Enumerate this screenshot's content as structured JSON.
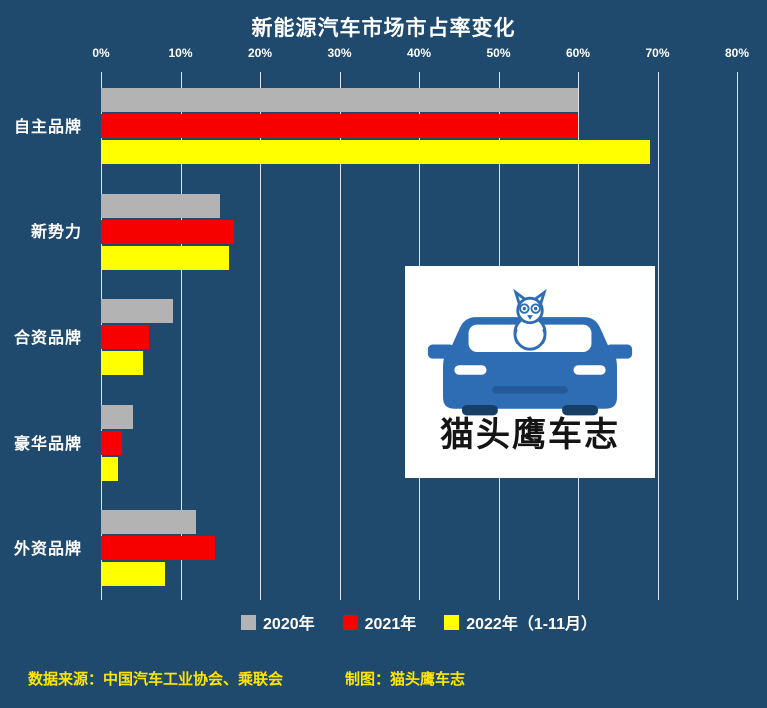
{
  "chart_data": {
    "type": "bar",
    "orientation": "horizontal",
    "title": "新能源汽车市场市占率变化",
    "background": "#1f4a6e",
    "grid": true,
    "legend_position": "bottom",
    "x_axis": {
      "min": 0,
      "max": 80,
      "tick_step": 10,
      "position": "top",
      "tick_labels": [
        "0%",
        "10%",
        "20%",
        "30%",
        "40%",
        "50%",
        "60%",
        "70%",
        "80%"
      ]
    },
    "categories": [
      "自主品牌",
      "新势力",
      "合资品牌",
      "豪华品牌",
      "外资品牌"
    ],
    "series": [
      {
        "name": "2020年",
        "color": "#b3b3b3",
        "values": [
          60,
          15,
          9,
          4,
          12
        ]
      },
      {
        "name": "2021年",
        "color": "#f60000",
        "values": [
          60,
          16.7,
          6,
          2.6,
          14.4
        ]
      },
      {
        "name": "2022年（1-11月）",
        "color": "#ffff00",
        "values": [
          69,
          16.1,
          5.3,
          2.1,
          8
        ]
      }
    ]
  },
  "watermark": {
    "text": "猫头鹰车志"
  },
  "footer": {
    "source": "数据来源：中国汽车工业协会、乘联会",
    "credit": "制图：猫头鹰车志"
  }
}
